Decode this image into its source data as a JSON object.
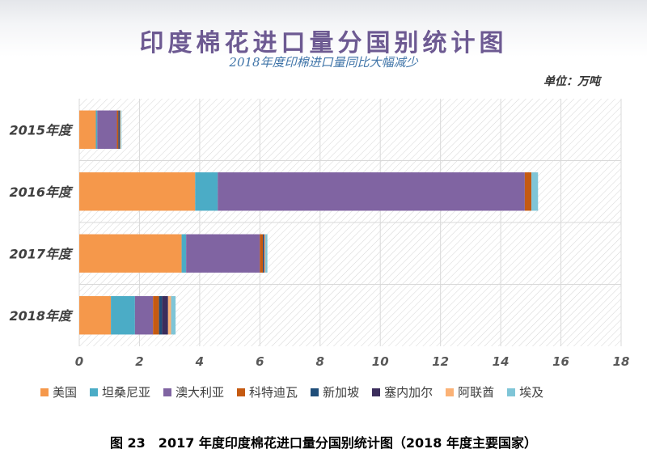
{
  "chart_data": {
    "type": "bar",
    "orientation": "horizontal",
    "stacked": true,
    "title": "印度棉花进口量分国别统计图",
    "subtitle": "2018年度印棉进口量同比大幅减少",
    "unit_label": "单位：万吨",
    "categories": [
      "2015年度",
      "2016年度",
      "2017年度",
      "2018年度"
    ],
    "xlim": [
      0,
      18
    ],
    "xticks": [
      "0",
      "2",
      "4",
      "6",
      "8",
      "10",
      "12",
      "14",
      "16",
      "18"
    ],
    "grid": true,
    "legend_position": "bottom",
    "series": [
      {
        "name": "美国",
        "color": "#f5984b",
        "values": [
          0.55,
          3.85,
          3.4,
          1.05
        ]
      },
      {
        "name": "坦桑尼亚",
        "color": "#4bacc6",
        "values": [
          0.05,
          0.75,
          0.15,
          0.8
        ]
      },
      {
        "name": "澳大利亚",
        "color": "#8064a2",
        "values": [
          0.65,
          10.2,
          2.45,
          0.6
        ]
      },
      {
        "name": "科特迪瓦",
        "color": "#c55a11",
        "values": [
          0.05,
          0.22,
          0.1,
          0.2
        ]
      },
      {
        "name": "新加坡",
        "color": "#1f4e79",
        "values": [
          0.03,
          0.0,
          0.03,
          0.1
        ]
      },
      {
        "name": "塞内加尔",
        "color": "#3b2d5c",
        "values": [
          0.02,
          0.0,
          0.02,
          0.2
        ]
      },
      {
        "name": "阿联酋",
        "color": "#fbb276",
        "values": [
          0.02,
          0.0,
          0.03,
          0.1
        ]
      },
      {
        "name": "埃及",
        "color": "#7fc5d7",
        "values": [
          0.03,
          0.22,
          0.07,
          0.15
        ]
      }
    ]
  },
  "caption": "图 23　2017 年度印度棉花进口量分国别统计图（2018 年度主要国家）"
}
